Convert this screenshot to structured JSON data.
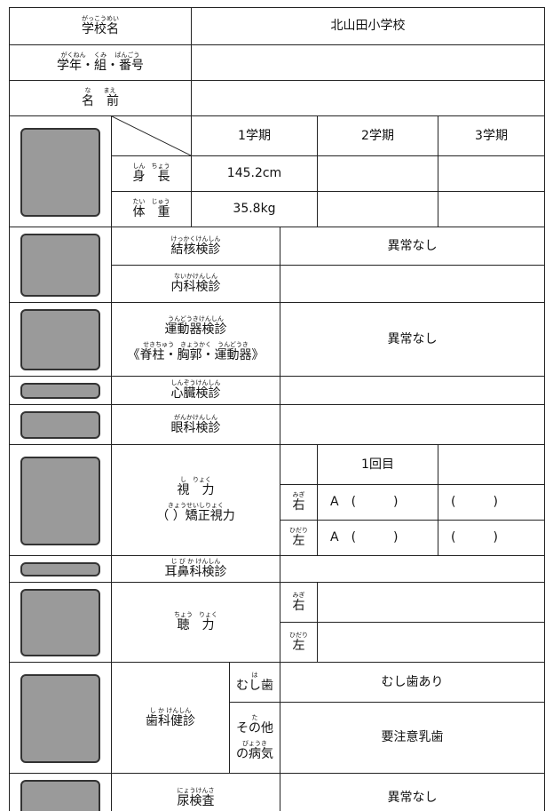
{
  "school_name": {
    "ruby": "がっこうめい",
    "text": "学校名"
  },
  "school_value": "北山田小学校",
  "grade_class_number": {
    "ruby": "がくねん　 くみ　 ばんごう",
    "text": "学年・組・番号"
  },
  "name": {
    "ruby": "な　　まえ",
    "text": "名　前"
  },
  "terms": [
    "1学期",
    "2学期",
    "3学期"
  ],
  "height": {
    "label": {
      "ruby": "しん　ちょう",
      "text": "身　長"
    },
    "term1": "145.2cm"
  },
  "weight": {
    "label": {
      "ruby": "たい　じゅう",
      "text": "体　重"
    },
    "term1": "35.8kg"
  },
  "tuberculosis": {
    "label": {
      "ruby": "けっかくけんしん",
      "text": "結核検診"
    },
    "result": "異常なし"
  },
  "internal": {
    "label": {
      "ruby": "ないかけんしん",
      "text": "内科検診"
    }
  },
  "motor": {
    "label": [
      {
        "ruby": "うんどうきけんしん",
        "text": "運動器検診"
      },
      {
        "ruby": "せきちゅう　きょうかく　うんどうき",
        "text": "《脊柱・胸郭・運動器》"
      }
    ],
    "result": "異常なし"
  },
  "heart": {
    "label": {
      "ruby": "しんぞうけんしん",
      "text": "心臓検診"
    }
  },
  "eye": {
    "label": {
      "ruby": "がんかけんしん",
      "text": "眼科検診"
    }
  },
  "vision": {
    "label": [
      {
        "ruby": "し　りょく",
        "text": "視　力"
      },
      {
        "ruby": "きょうせいしりょく",
        "text": "（ ）矯正視力"
      }
    ],
    "round": "1回目",
    "right": {
      "label": {
        "ruby": "みぎ",
        "text": "右"
      },
      "round1": "A　(　　　)",
      "extra": "(　　　)"
    },
    "left": {
      "label": {
        "ruby": "ひだり",
        "text": "左"
      },
      "round1": "A　(　　　)",
      "extra": "(　　　)"
    }
  },
  "ent": {
    "label": {
      "ruby": "じ び か けんしん",
      "text": "耳鼻科検診"
    }
  },
  "hearing": {
    "label": {
      "ruby": "ちょう　りょく",
      "text": "聴　力"
    },
    "right": {
      "label": {
        "ruby": "みぎ",
        "text": "右"
      }
    },
    "left": {
      "label": {
        "ruby": "ひだり",
        "text": "左"
      }
    }
  },
  "dental": {
    "label": {
      "ruby": "し か けんしん",
      "text": "歯科健診"
    },
    "caries": {
      "label": {
        "ruby": "は",
        "text": "むし歯"
      },
      "result": "むし歯あり"
    },
    "other": {
      "label": [
        {
          "ruby": "た",
          "text": "その他"
        },
        {
          "ruby": "びょうき",
          "text": "の病気"
        }
      ],
      "result": "要注意乳歯"
    }
  },
  "urine": {
    "label": {
      "ruby": "にょうけんさ",
      "text": "尿検査"
    },
    "result": "異常なし"
  }
}
